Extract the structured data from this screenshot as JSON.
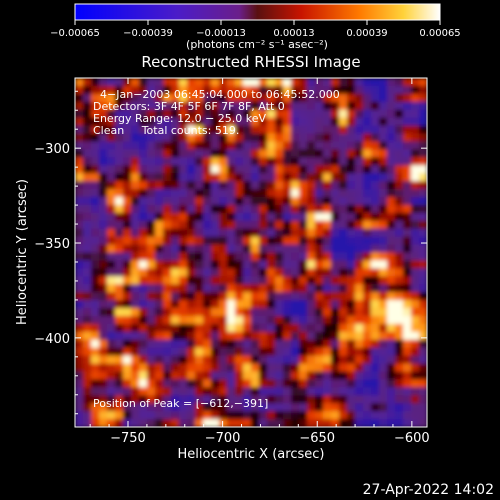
{
  "chart_data": {
    "type": "heatmap",
    "title": "Reconstructed RHESSI Image",
    "xlabel": "Heliocentric X (arcsec)",
    "ylabel": "Heliocentric Y (arcsec)",
    "xlim": [
      -778,
      -592
    ],
    "ylim": [
      -447,
      -263
    ],
    "x_ticks": [
      -750,
      -700,
      -650,
      -600
    ],
    "x_tick_labels": [
      "−750",
      "−700",
      "−650",
      "−600"
    ],
    "y_ticks": [
      -300,
      -350,
      -400
    ],
    "y_tick_labels": [
      "−300",
      "−350",
      "−400"
    ],
    "colorbar": {
      "ticks": [
        -0.00065,
        -0.00039,
        -0.00013,
        0.00013,
        0.00039,
        0.00065
      ],
      "tick_labels": [
        "−0.00065",
        "−0.00039",
        "−0.00013",
        "0.00013",
        "0.00039",
        "0.00065"
      ],
      "label": "(photons cm⁻² s⁻¹ asec⁻²)",
      "range": [
        -0.00065,
        0.00065
      ]
    },
    "annotations": [
      "4−Jan−2003 06:45:04.000 to 06:45:52.000",
      "Detectors: 3F 4F 5F 6F 7F 8F, Att 0",
      "Energy Range: 12.0 − 25.0 keV",
      "Clean     Total counts: 519."
    ],
    "peak_label": "Position of Peak = [−612,−391]",
    "peak_position": [
      -612,
      -391
    ],
    "grid": false
  },
  "footer": {
    "date": "27-Apr-2022 14:02"
  }
}
